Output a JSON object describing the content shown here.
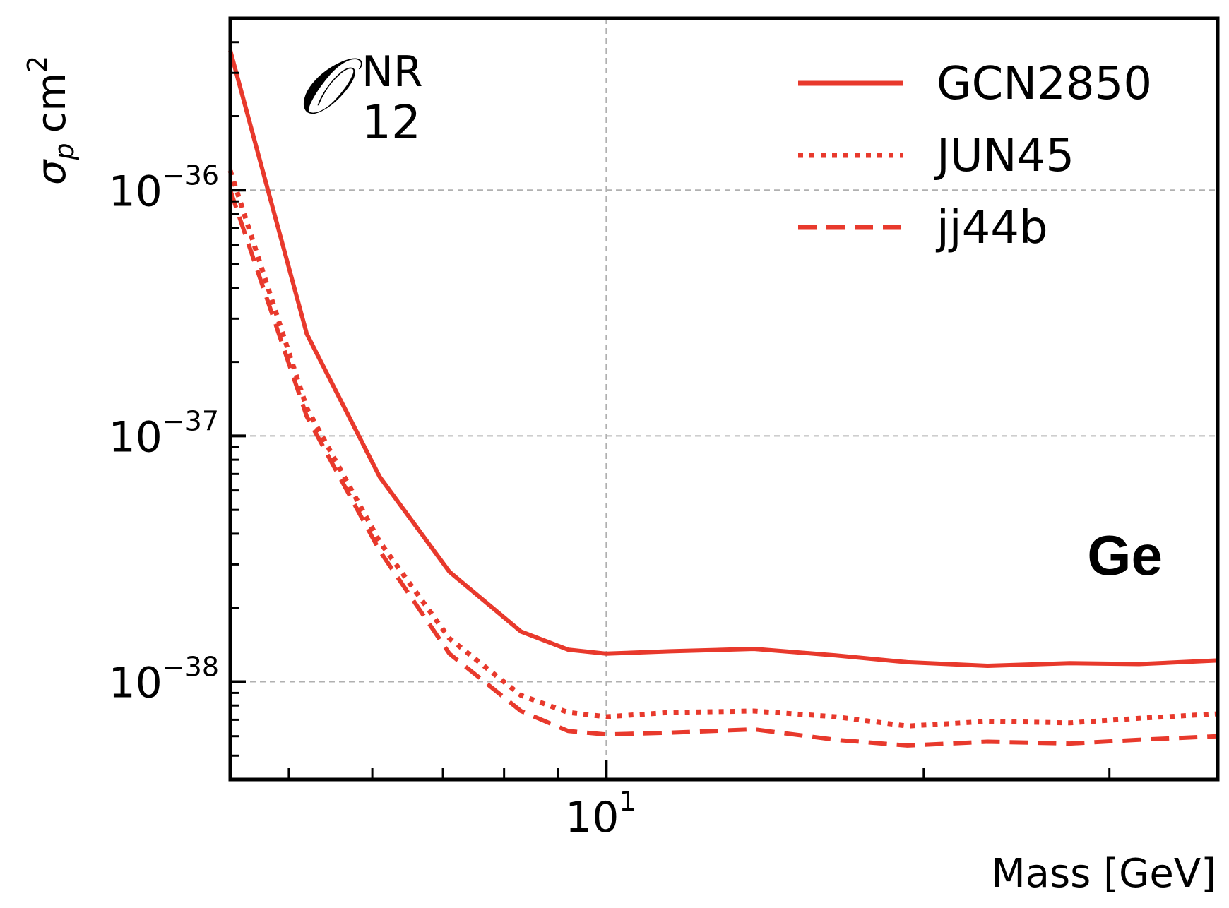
{
  "chart_data": {
    "type": "line",
    "xscale": "log",
    "yscale": "log",
    "xlabel": "Mass [GeV]",
    "ylabel": "σ_p cm^2",
    "ylabel_parts": {
      "sigma": "σ",
      "sub": "p",
      "unit": "cm",
      "sup": "2"
    },
    "xlim": [
      4.4,
      38
    ],
    "ylim": [
      4e-39,
      5e-36
    ],
    "x_major_ticks": [
      {
        "value": 10,
        "base": "10",
        "exp": "1"
      }
    ],
    "y_major_ticks": [
      {
        "value": 1e-36,
        "base": "10",
        "exp": "−36"
      },
      {
        "value": 1e-37,
        "base": "10",
        "exp": "−37"
      },
      {
        "value": 1e-38,
        "base": "10",
        "exp": "−38"
      }
    ],
    "x_minor_ticks": [
      5,
      6,
      7,
      8,
      9,
      20,
      30
    ],
    "y_minor_ticks": [
      5e-39,
      6e-39,
      7e-39,
      8e-39,
      9e-39,
      2e-38,
      3e-38,
      4e-38,
      5e-38,
      6e-38,
      7e-38,
      8e-38,
      9e-38,
      2e-37,
      3e-37,
      4e-37,
      5e-37,
      6e-37,
      7e-37,
      8e-37,
      9e-37,
      2e-36,
      3e-36,
      4e-36
    ],
    "grid": true,
    "legend_position": "top-right",
    "series": [
      {
        "name": "GCN2850",
        "style": "solid",
        "color": "#e8392c",
        "x": [
          4.4,
          5.2,
          6.1,
          7.1,
          8.3,
          9.2,
          10.0,
          11.5,
          13.8,
          16.5,
          19.3,
          23.0,
          27.5,
          32.0,
          38.0
        ],
        "y": [
          3.7e-36,
          2.6e-37,
          6.8e-38,
          2.8e-38,
          1.6e-38,
          1.35e-38,
          1.3e-38,
          1.33e-38,
          1.36e-38,
          1.28e-38,
          1.2e-38,
          1.16e-38,
          1.19e-38,
          1.18e-38,
          1.22e-38
        ]
      },
      {
        "name": "JUN45",
        "style": "dotted",
        "color": "#e8392c",
        "x": [
          4.4,
          5.2,
          6.1,
          7.1,
          8.3,
          9.2,
          10.0,
          11.5,
          13.8,
          16.5,
          19.3,
          23.0,
          27.5,
          32.0,
          38.0
        ],
        "y": [
          1.2e-36,
          1.3e-37,
          3.7e-38,
          1.5e-38,
          8.8e-39,
          7.5e-39,
          7.2e-39,
          7.5e-39,
          7.6e-39,
          7.2e-39,
          6.6e-39,
          6.9e-39,
          6.8e-39,
          7.1e-39,
          7.4e-39
        ]
      },
      {
        "name": "jj44b",
        "style": "dashed",
        "color": "#e8392c",
        "x": [
          4.4,
          5.2,
          6.1,
          7.1,
          8.3,
          9.2,
          10.0,
          11.5,
          13.8,
          16.5,
          19.3,
          23.0,
          27.5,
          32.0,
          38.0
        ],
        "y": [
          1e-36,
          1.2e-37,
          3.4e-38,
          1.3e-38,
          7.6e-39,
          6.3e-39,
          6.1e-39,
          6.2e-39,
          6.4e-39,
          5.8e-39,
          5.5e-39,
          5.7e-39,
          5.6e-39,
          5.8e-39,
          6e-39
        ]
      }
    ],
    "annotations": {
      "operator": {
        "symbol": "𝒪",
        "sub": "12",
        "sup": "NR"
      },
      "material": "Ge"
    }
  }
}
